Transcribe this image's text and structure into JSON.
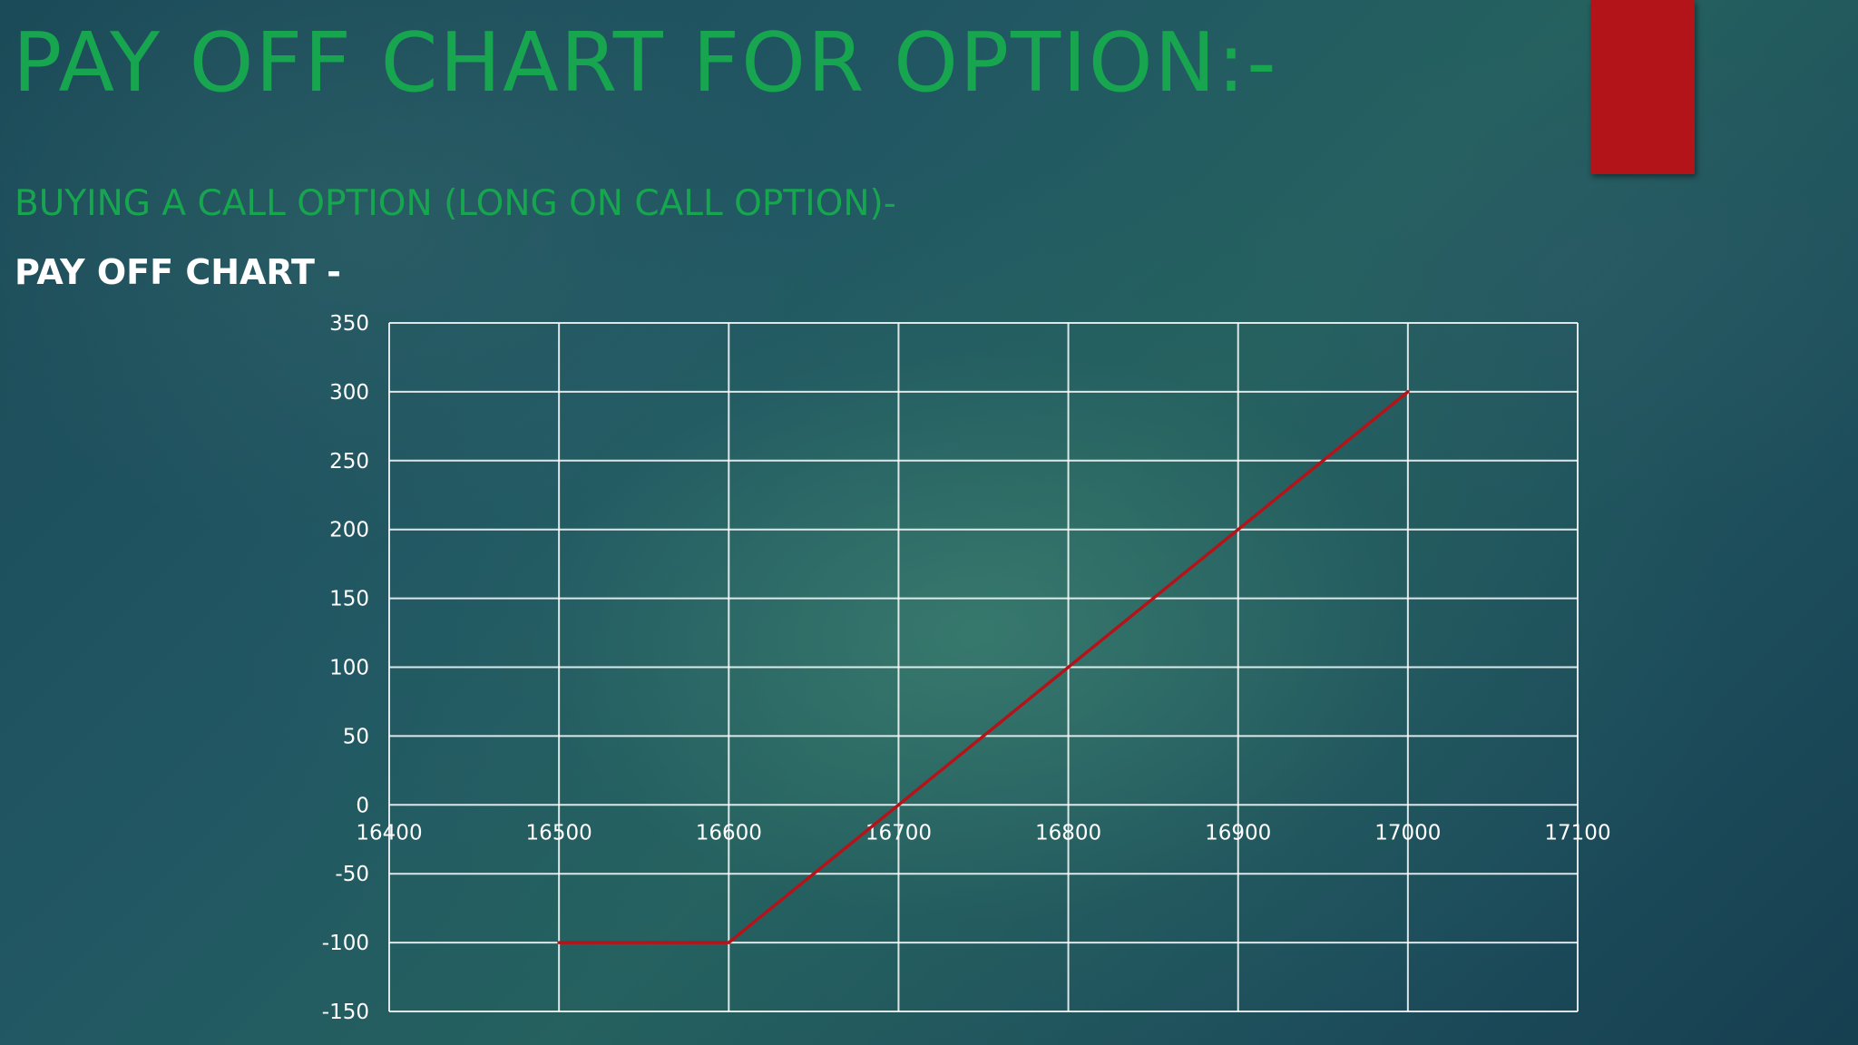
{
  "slide": {
    "title": "PAY OFF CHART FOR OPTION:-",
    "subtitle": "BUYING A CALL OPTION (LONG ON CALL OPTION)-",
    "chart_heading": "PAY OFF CHART -",
    "accent_color": "#b3141a",
    "title_color": "#17a550"
  },
  "chart_data": {
    "type": "line",
    "title": "",
    "xlabel": "",
    "ylabel": "",
    "xlim": [
      16400,
      17100
    ],
    "ylim": [
      -150,
      350
    ],
    "x_ticks": [
      16400,
      16500,
      16600,
      16700,
      16800,
      16900,
      17000,
      17100
    ],
    "x_tick_labels": [
      "16400",
      "16500",
      "16600",
      "16700",
      "16800",
      "16900",
      "17000",
      "17100"
    ],
    "y_ticks": [
      350,
      300,
      250,
      200,
      150,
      100,
      50,
      0,
      -50,
      -100,
      -150
    ],
    "y_tick_labels": [
      "350",
      "300",
      "250",
      "200",
      "150",
      "100",
      "50",
      "0",
      "-50",
      "-100",
      "-150"
    ],
    "grid": true,
    "series": [
      {
        "color": "#b3141a",
        "x": [
          16500,
          16600,
          17000
        ],
        "y": [
          -100,
          -100,
          300
        ]
      }
    ]
  }
}
